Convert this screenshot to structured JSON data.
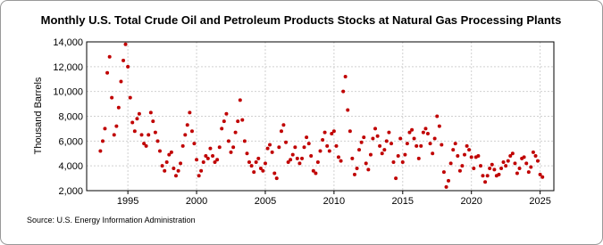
{
  "chart_data": {
    "type": "scatter",
    "title": "Monthly U.S. Total Crude Oil and Petroleum Products Stocks at Natural Gas Processing Plants",
    "y_label": "Thousand Barrels",
    "source": "Source: U.S. Energy Information Administration",
    "color": "#c00000",
    "grid": true,
    "xlim": [
      1992,
      2026
    ],
    "xticks": [
      1995,
      2000,
      2005,
      2010,
      2015,
      2020,
      2025
    ],
    "ylim": [
      2000,
      14000
    ],
    "yticks": [
      {
        "value": 2000,
        "label": "2,000"
      },
      {
        "value": 4000,
        "label": "4,000"
      },
      {
        "value": 6000,
        "label": "6,000"
      },
      {
        "value": 8000,
        "label": "8,000"
      },
      {
        "value": 10000,
        "label": "10,000"
      },
      {
        "value": 12000,
        "label": "12,000"
      },
      {
        "value": 14000,
        "label": "14,000"
      }
    ],
    "x": [
      1993.0,
      1993.17,
      1993.33,
      1993.5,
      1993.67,
      1993.83,
      1994.0,
      1994.17,
      1994.33,
      1994.5,
      1994.67,
      1994.83,
      1995.0,
      1995.17,
      1995.33,
      1995.5,
      1995.67,
      1995.83,
      1996.0,
      1996.17,
      1996.33,
      1996.5,
      1996.67,
      1996.83,
      1997.0,
      1997.17,
      1997.33,
      1997.5,
      1997.67,
      1997.83,
      1998.0,
      1998.17,
      1998.33,
      1998.5,
      1998.67,
      1998.83,
      1999.0,
      1999.17,
      1999.33,
      1999.5,
      1999.67,
      1999.83,
      2000.0,
      2000.17,
      2000.33,
      2000.5,
      2000.67,
      2000.83,
      2001.0,
      2001.17,
      2001.33,
      2001.5,
      2001.67,
      2001.83,
      2002.0,
      2002.17,
      2002.33,
      2002.5,
      2002.67,
      2002.83,
      2003.0,
      2003.17,
      2003.33,
      2003.5,
      2003.67,
      2003.83,
      2004.0,
      2004.17,
      2004.33,
      2004.5,
      2004.67,
      2004.83,
      2005.0,
      2005.17,
      2005.33,
      2005.5,
      2005.67,
      2005.83,
      2006.0,
      2006.17,
      2006.33,
      2006.5,
      2006.67,
      2006.83,
      2007.0,
      2007.17,
      2007.33,
      2007.5,
      2007.67,
      2007.83,
      2008.0,
      2008.17,
      2008.33,
      2008.5,
      2008.67,
      2008.83,
      2009.0,
      2009.17,
      2009.33,
      2009.5,
      2009.67,
      2009.83,
      2010.0,
      2010.17,
      2010.33,
      2010.5,
      2010.67,
      2010.83,
      2011.0,
      2011.17,
      2011.33,
      2011.5,
      2011.67,
      2011.83,
      2012.0,
      2012.17,
      2012.33,
      2012.5,
      2012.67,
      2012.83,
      2013.0,
      2013.17,
      2013.33,
      2013.5,
      2013.67,
      2013.83,
      2014.0,
      2014.17,
      2014.33,
      2014.5,
      2014.67,
      2014.83,
      2015.0,
      2015.17,
      2015.33,
      2015.5,
      2015.67,
      2015.83,
      2016.0,
      2016.17,
      2016.33,
      2016.5,
      2016.67,
      2016.83,
      2017.0,
      2017.17,
      2017.33,
      2017.5,
      2017.67,
      2017.83,
      2018.0,
      2018.17,
      2018.33,
      2018.5,
      2018.67,
      2018.83,
      2019.0,
      2019.17,
      2019.33,
      2019.5,
      2019.67,
      2019.83,
      2020.0,
      2020.17,
      2020.33,
      2020.5,
      2020.67,
      2020.83,
      2021.0,
      2021.17,
      2021.33,
      2021.5,
      2021.67,
      2021.83,
      2022.0,
      2022.17,
      2022.33,
      2022.5,
      2022.67,
      2022.83,
      2023.0,
      2023.17,
      2023.33,
      2023.5,
      2023.67,
      2023.83,
      2024.0,
      2024.17,
      2024.33,
      2024.5,
      2024.67,
      2024.83,
      2025.0,
      2025.17
    ],
    "values": [
      5200,
      6000,
      7000,
      11500,
      12800,
      9500,
      6500,
      7200,
      8700,
      10800,
      12500,
      13800,
      12000,
      9500,
      7500,
      6800,
      7800,
      8200,
      6500,
      5800,
      5600,
      6500,
      8300,
      7600,
      6700,
      6000,
      5200,
      4000,
      3600,
      4300,
      4900,
      5100,
      3800,
      3200,
      3600,
      4200,
      5600,
      6500,
      7300,
      8300,
      6800,
      5800,
      4500,
      3200,
      3600,
      4300,
      4800,
      4600,
      5400,
      4800,
      4300,
      4500,
      5500,
      7000,
      7600,
      8200,
      6000,
      5100,
      5500,
      6700,
      7600,
      9300,
      7700,
      6000,
      5000,
      4300,
      4000,
      3500,
      4300,
      4600,
      3800,
      3600,
      4200,
      5400,
      5700,
      5100,
      3400,
      3000,
      5500,
      6800,
      7300,
      5900,
      4300,
      4500,
      4900,
      5500,
      4600,
      4200,
      4600,
      5500,
      6300,
      5800,
      4800,
      3600,
      3400,
      4300,
      5200,
      6100,
      6700,
      5600,
      5200,
      6600,
      6800,
      5600,
      4700,
      4400,
      10000,
      11200,
      8500,
      6800,
      4600,
      3300,
      3800,
      5300,
      5900,
      6300,
      4200,
      3700,
      4900,
      6200,
      7000,
      6400,
      5600,
      5000,
      5300,
      6000,
      6700,
      5800,
      4300,
      3000,
      4800,
      6200,
      4300,
      4900,
      5800,
      6700,
      6900,
      6200,
      5600,
      4600,
      5600,
      6700,
      7000,
      6600,
      5800,
      5000,
      6200,
      8000,
      7200,
      5700,
      3500,
      2300,
      2800,
      4200,
      5300,
      5800,
      4800,
      3600,
      4000,
      4900,
      5600,
      5300,
      4700,
      3800,
      4700,
      4800,
      4000,
      3200,
      2700,
      3200,
      3800,
      4100,
      3700,
      3200,
      3300,
      3800,
      4300,
      4000,
      4400,
      4800,
      5000,
      4200,
      3400,
      3800,
      4600,
      4700,
      4200,
      3500,
      3900,
      5100,
      4800,
      4400,
      3300,
      3100
    ]
  }
}
